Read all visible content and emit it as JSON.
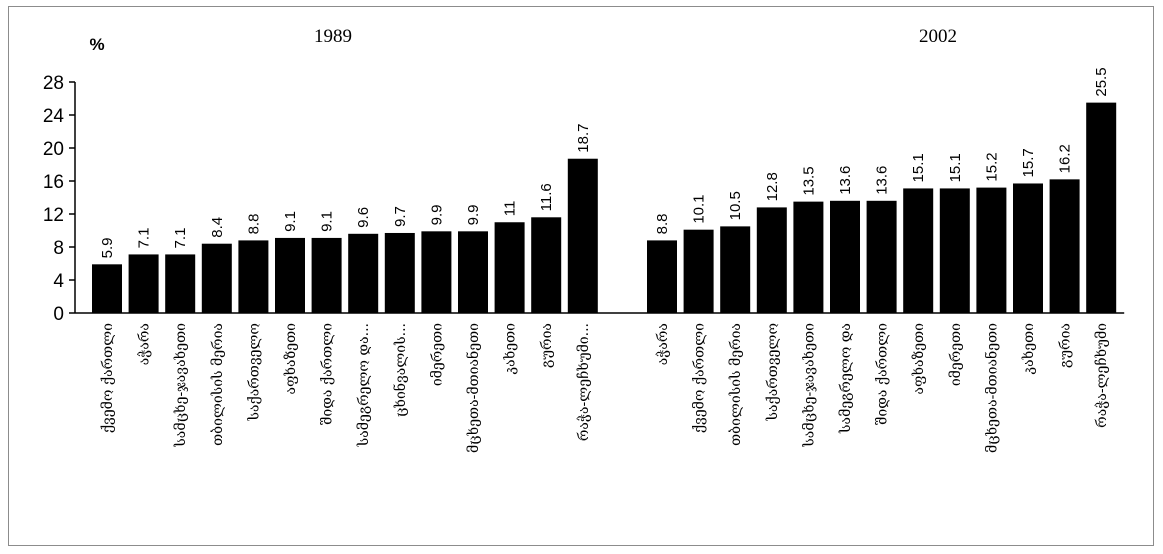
{
  "chart_data": {
    "type": "bar",
    "ylabel": "%",
    "ylim": [
      0,
      28
    ],
    "yticks": [
      0,
      4,
      8,
      12,
      16,
      20,
      24,
      28
    ],
    "grid": false,
    "legend": "none",
    "bar_color": "#000000",
    "panels": [
      {
        "title": "1989",
        "categories": [
          "ქვემო ქართლი",
          "აჭარა",
          "სამცხე-ჯავახეთი",
          "თბილისის მერია",
          "საქართველო",
          "აფხაზეთი",
          "შიდა ქართლი",
          "სამეგრელო და...",
          "ცხინვალის...",
          "იმერეთი",
          "მცხეთა-მთიანეთი",
          "კახეთი",
          "გურია",
          "რაჭა-ლეჩხუმი..."
        ],
        "values": [
          5.9,
          7.1,
          7.1,
          8.4,
          8.8,
          9.1,
          9.1,
          9.6,
          9.7,
          9.9,
          9.9,
          11,
          11.6,
          18.7
        ],
        "labels": [
          "5.9",
          "7.1",
          "7.1",
          "8.4",
          "8.8",
          "9.1",
          "9.1",
          "9.6",
          "9.7",
          "9.9",
          "9.9",
          "11",
          "11.6",
          "18.7"
        ]
      },
      {
        "title": "2002",
        "categories": [
          "აჭარა",
          "ქვემო ქართლი",
          "თბილისის მერია",
          "საქართველო",
          "სამცხე-ჯავახეთი",
          "სამეგრელო და",
          "შიდა ქართლი",
          "აფხაზეთი",
          "იმერეთი",
          "მცხეთა-მთიანეთი",
          "კახეთი",
          "გურია",
          "რაჭა-ლეჩხუმი"
        ],
        "values": [
          8.8,
          10.1,
          10.5,
          12.8,
          13.5,
          13.6,
          13.6,
          15.1,
          15.1,
          15.2,
          15.7,
          16.2,
          25.5
        ],
        "labels": [
          "8.8",
          "10.1",
          "10.5",
          "12.8",
          "13.5",
          "13.6",
          "13.6",
          "15.1",
          "15.1",
          "15.2",
          "15.7",
          "16.2",
          "25.5"
        ]
      }
    ]
  }
}
